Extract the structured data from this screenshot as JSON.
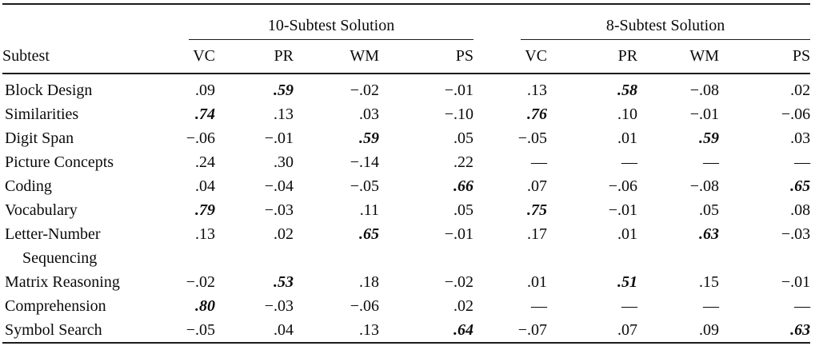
{
  "styles": {
    "background": "#ffffff",
    "text_color": "#0b0b0b",
    "rule_color": "#1c1c1c"
  },
  "chart_data": {
    "type": "table",
    "row_header_label": "Subtest",
    "column_groups": [
      {
        "label": "10-Subtest Solution",
        "columns": [
          "VC",
          "PR",
          "WM",
          "PS"
        ]
      },
      {
        "label": "8-Subtest Solution",
        "columns": [
          "VC",
          "PR",
          "WM",
          "PS"
        ]
      }
    ],
    "rows": [
      {
        "label": "Block Design",
        "values": [
          ".09",
          ".59",
          "−.02",
          "−.01",
          ".13",
          ".58",
          "−.08",
          ".02"
        ],
        "bold_italic": [
          0,
          1,
          0,
          0,
          0,
          1,
          0,
          0
        ]
      },
      {
        "label": "Similarities",
        "values": [
          ".74",
          ".13",
          ".03",
          "−.10",
          ".76",
          ".10",
          "−.01",
          "−.06"
        ],
        "bold_italic": [
          1,
          0,
          0,
          0,
          1,
          0,
          0,
          0
        ]
      },
      {
        "label": "Digit Span",
        "values": [
          "−.06",
          "−.01",
          ".59",
          ".05",
          "−.05",
          ".01",
          ".59",
          ".03"
        ],
        "bold_italic": [
          0,
          0,
          1,
          0,
          0,
          0,
          1,
          0
        ]
      },
      {
        "label": "Picture Concepts",
        "values": [
          ".24",
          ".30",
          "−.14",
          ".22",
          "—",
          "—",
          "—",
          "—"
        ],
        "bold_italic": [
          0,
          0,
          0,
          0,
          0,
          0,
          0,
          0
        ]
      },
      {
        "label": "Coding",
        "values": [
          ".04",
          "−.04",
          "−.05",
          ".66",
          ".07",
          "−.06",
          "−.08",
          ".65"
        ],
        "bold_italic": [
          0,
          0,
          0,
          1,
          0,
          0,
          0,
          1
        ]
      },
      {
        "label": "Vocabulary",
        "values": [
          ".79",
          "−.03",
          ".11",
          ".05",
          ".75",
          "−.01",
          ".05",
          ".08"
        ],
        "bold_italic": [
          1,
          0,
          0,
          0,
          1,
          0,
          0,
          0
        ]
      },
      {
        "label": "Letter-Number",
        "label_line2": "Sequencing",
        "values": [
          ".13",
          ".02",
          ".65",
          "−.01",
          ".17",
          ".01",
          ".63",
          "−.03"
        ],
        "bold_italic": [
          0,
          0,
          1,
          0,
          0,
          0,
          1,
          0
        ]
      },
      {
        "label": "Matrix Reasoning",
        "values": [
          "−.02",
          ".53",
          ".18",
          "−.02",
          ".01",
          ".51",
          ".15",
          "−.01"
        ],
        "bold_italic": [
          0,
          1,
          0,
          0,
          0,
          1,
          0,
          0
        ]
      },
      {
        "label": "Comprehension",
        "values": [
          ".80",
          "−.03",
          "−.06",
          ".02",
          "—",
          "—",
          "—",
          "—"
        ],
        "bold_italic": [
          1,
          0,
          0,
          0,
          0,
          0,
          0,
          0
        ]
      },
      {
        "label": "Symbol Search",
        "values": [
          "−.05",
          ".04",
          ".13",
          ".64",
          "−.07",
          ".07",
          ".09",
          ".63"
        ],
        "bold_italic": [
          0,
          0,
          0,
          1,
          0,
          0,
          0,
          1
        ]
      }
    ]
  }
}
